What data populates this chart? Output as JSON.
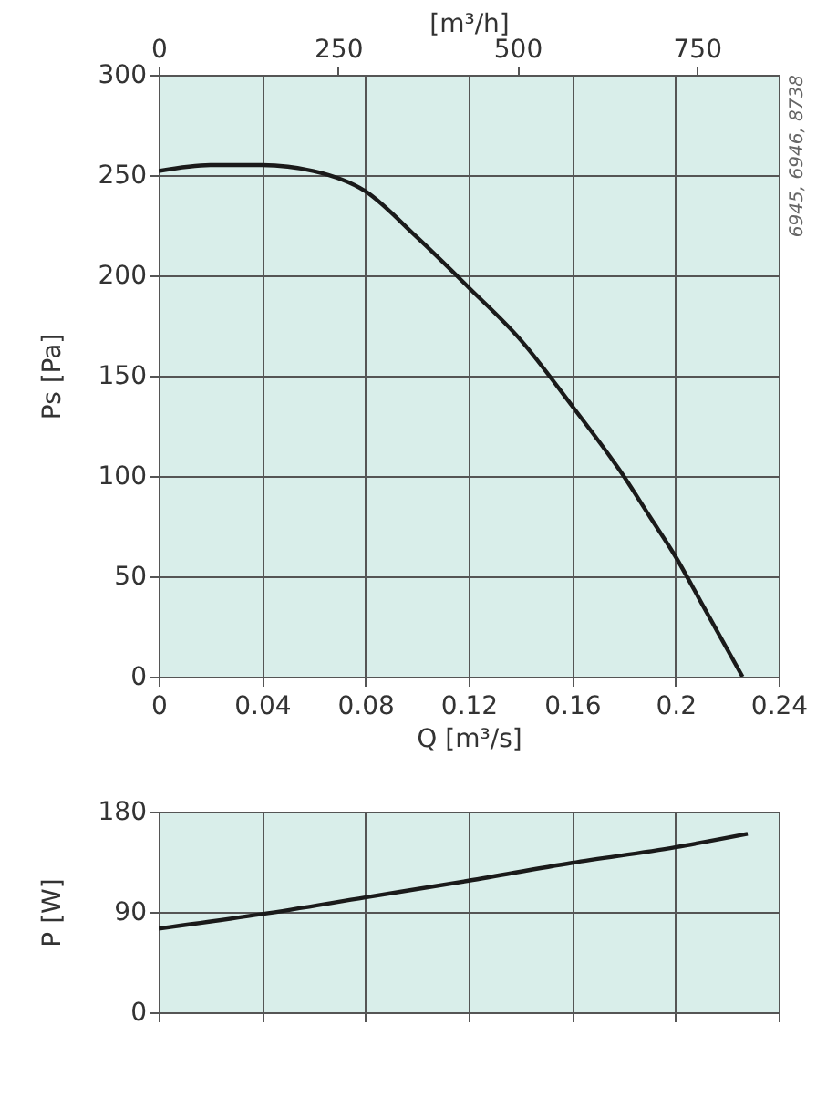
{
  "chart_data": [
    {
      "type": "line",
      "xlabel": "Q [m³/s]",
      "ylabel": "Ps [Pa]",
      "x2label": "[m³/h]",
      "annotations": [
        "6945, 6946, 8738"
      ],
      "x": [
        0,
        0.02,
        0.04,
        0.06,
        0.08,
        0.1,
        0.12,
        0.14,
        0.16,
        0.18,
        0.19,
        0.2,
        0.21,
        0.226
      ],
      "series": [
        {
          "color": "#1a1a1a",
          "values": [
            252,
            255,
            255,
            252,
            242,
            219,
            194,
            168,
            135,
            100,
            80,
            60,
            37,
            0
          ]
        }
      ],
      "xlim": [
        0,
        0.24
      ],
      "xticks": [
        0,
        0.04,
        0.08,
        0.12,
        0.16,
        0.2,
        0.24
      ],
      "ylim": [
        0,
        300
      ],
      "yticks": [
        0,
        50,
        100,
        150,
        200,
        250,
        300
      ],
      "x2lim": [
        0,
        864
      ],
      "x2ticks": [
        0,
        250,
        500,
        750
      ],
      "grid": true,
      "line_style": "solid"
    },
    {
      "type": "line",
      "ylabel": "P [W]",
      "x": [
        0,
        0.04,
        0.08,
        0.12,
        0.16,
        0.2,
        0.228
      ],
      "series": [
        {
          "color": "#1a1a1a",
          "values": [
            75,
            88,
            103,
            118,
            134,
            148,
            160
          ]
        }
      ],
      "xlim": [
        0,
        0.24
      ],
      "xticks": [
        0,
        0.04,
        0.08,
        0.12,
        0.16,
        0.2,
        0.24
      ],
      "ylim": [
        0,
        180
      ],
      "yticks": [
        0,
        90,
        180
      ],
      "tick_labels": "y",
      "grid": true,
      "line_style": "solid"
    }
  ]
}
